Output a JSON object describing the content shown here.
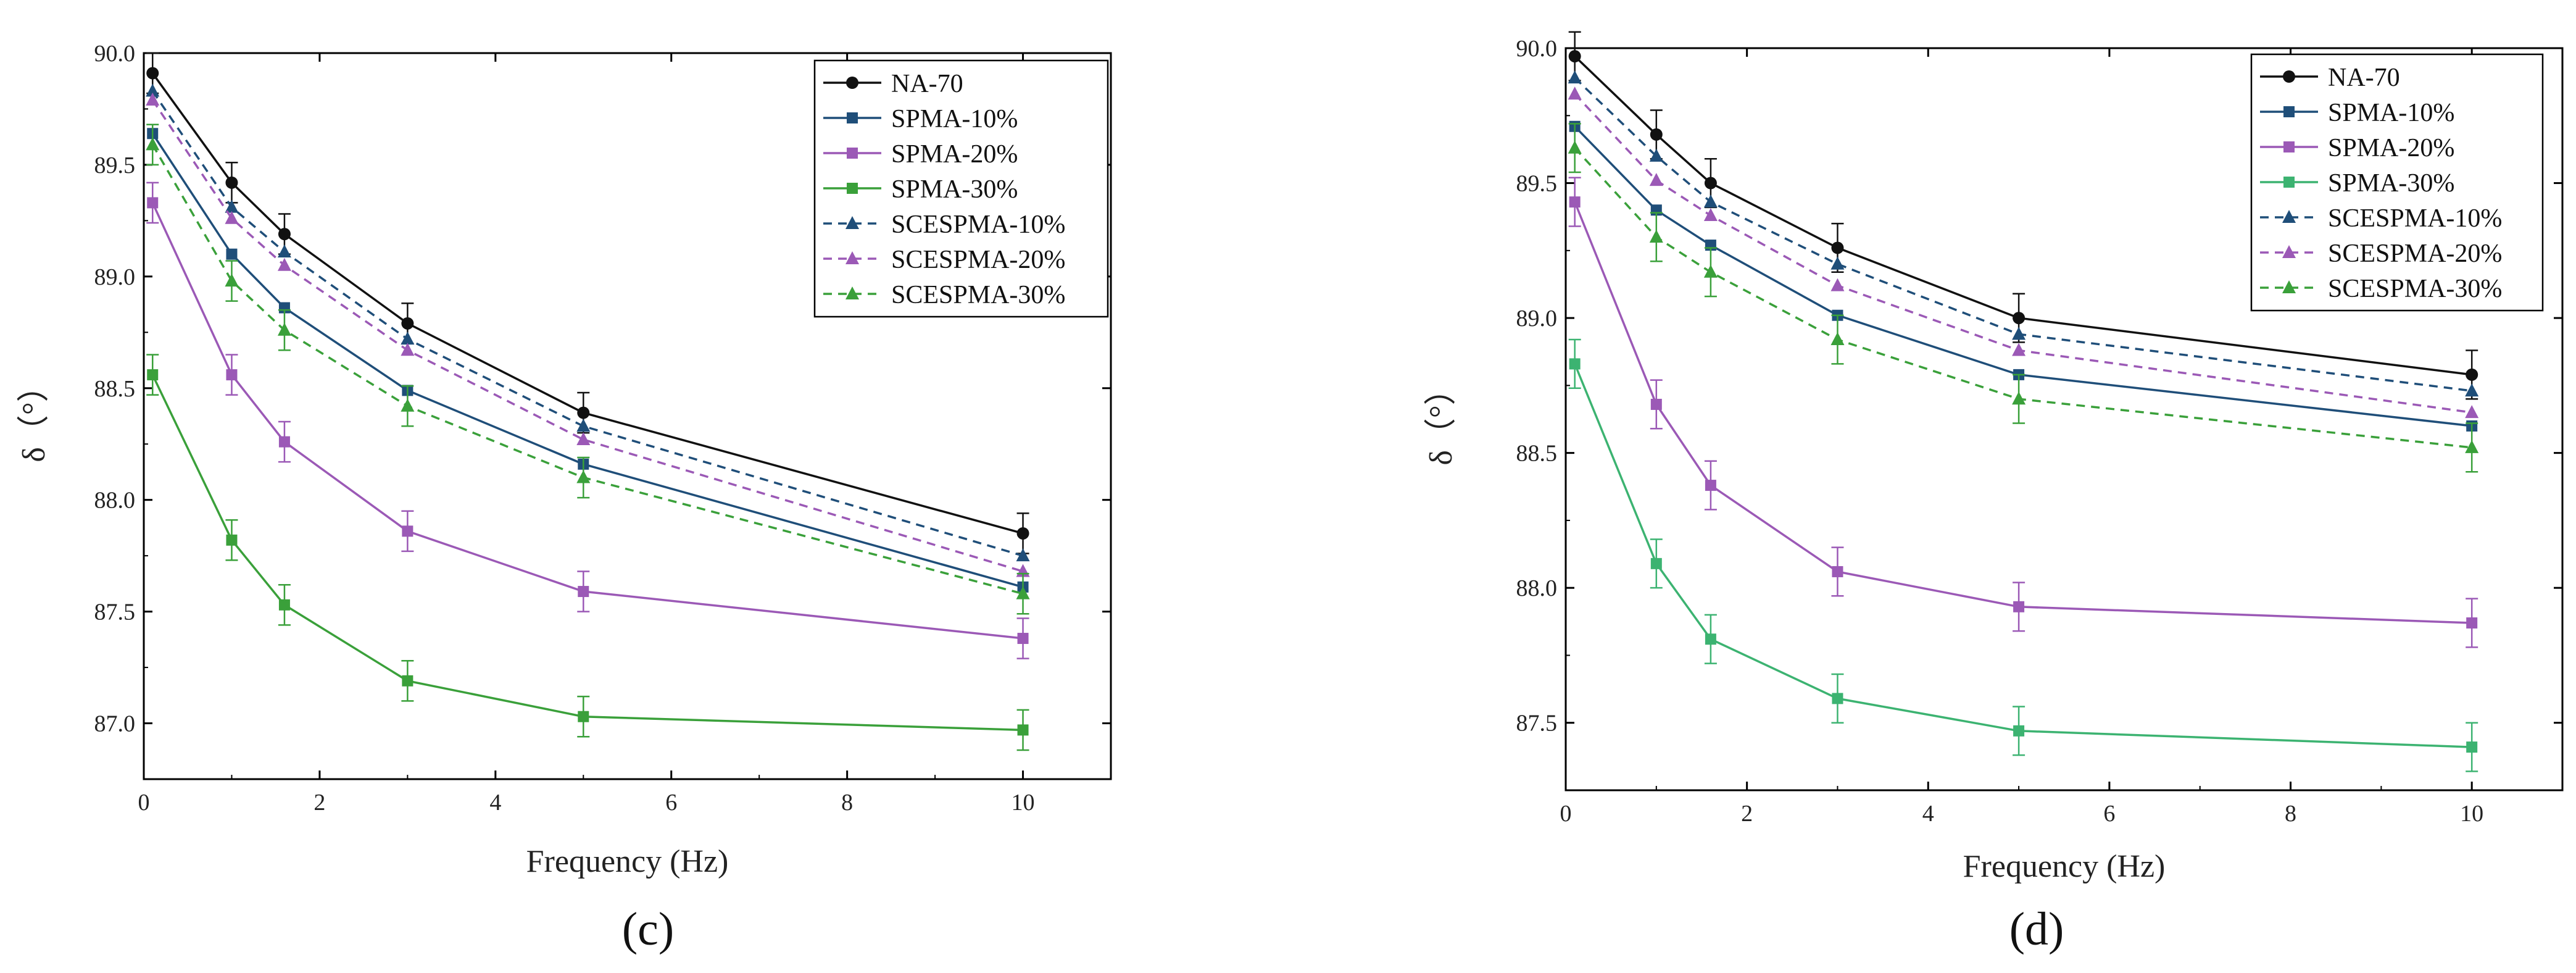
{
  "chart_data": [
    {
      "type": "line",
      "panel_label": "(c)",
      "xlabel": "Frequency (Hz)",
      "ylabel": "δ（°）",
      "xlim": [
        0,
        11
      ],
      "ylim": [
        86.75,
        90.0
      ],
      "xticks": [
        "0",
        "2",
        "4",
        "6",
        "8",
        "10"
      ],
      "yticks": [
        "87.0",
        "87.5",
        "88.0",
        "88.5",
        "89.0",
        "89.5",
        "90.0"
      ],
      "legend_position": "top-right",
      "x": [
        0.1,
        1,
        1.6,
        3,
        5,
        10
      ],
      "series": [
        {
          "name": "NA-70",
          "color": "#111111",
          "marker": "circle",
          "dash": "solid",
          "error_bar": true,
          "values": [
            89.91,
            89.42,
            89.19,
            88.79,
            88.39,
            87.85
          ]
        },
        {
          "name": "SPMA-10%",
          "color": "#1f4e79",
          "marker": "square",
          "dash": "solid",
          "error_bar": false,
          "values": [
            89.64,
            89.1,
            88.86,
            88.49,
            88.16,
            87.61
          ]
        },
        {
          "name": "SPMA-20%",
          "color": "#9b59b6",
          "marker": "square",
          "dash": "solid",
          "error_bar": true,
          "values": [
            89.33,
            88.56,
            88.26,
            87.86,
            87.59,
            87.38
          ]
        },
        {
          "name": "SPMA-30%",
          "color": "#3aa03a",
          "marker": "square",
          "dash": "solid",
          "error_bar": true,
          "values": [
            88.56,
            87.82,
            87.53,
            87.19,
            87.03,
            86.97
          ]
        },
        {
          "name": "SCESPMA-10%",
          "color": "#1f4e79",
          "marker": "triangle",
          "dash": "dashed",
          "error_bar": false,
          "values": [
            89.83,
            89.31,
            89.11,
            88.72,
            88.33,
            87.75
          ]
        },
        {
          "name": "SCESPMA-20%",
          "color": "#9b59b6",
          "marker": "triangle",
          "dash": "dashed",
          "error_bar": false,
          "values": [
            89.79,
            89.26,
            89.05,
            88.67,
            88.27,
            87.68
          ]
        },
        {
          "name": "SCESPMA-30%",
          "color": "#3aa03a",
          "marker": "triangle",
          "dash": "dashed",
          "error_bar": true,
          "values": [
            89.59,
            88.98,
            88.76,
            88.42,
            88.1,
            87.58
          ]
        }
      ]
    },
    {
      "type": "line",
      "panel_label": "(d)",
      "xlabel": "Frequency (Hz)",
      "ylabel": "δ（°）",
      "xlim": [
        0,
        11
      ],
      "ylim": [
        87.25,
        90.0
      ],
      "xticks": [
        "0",
        "2",
        "4",
        "6",
        "8",
        "10"
      ],
      "yticks": [
        "87.5",
        "88.0",
        "88.5",
        "89.0",
        "89.5",
        "90.0"
      ],
      "legend_position": "top-right",
      "x": [
        0.1,
        1,
        1.6,
        3,
        5,
        10
      ],
      "series": [
        {
          "name": "NA-70",
          "color": "#111111",
          "marker": "circle",
          "dash": "solid",
          "error_bar": true,
          "values": [
            89.97,
            89.68,
            89.5,
            89.26,
            89.0,
            88.79
          ]
        },
        {
          "name": "SPMA-10%",
          "color": "#1f4e79",
          "marker": "square",
          "dash": "solid",
          "error_bar": false,
          "values": [
            89.71,
            89.4,
            89.27,
            89.01,
            88.79,
            88.6
          ]
        },
        {
          "name": "SPMA-20%",
          "color": "#9b59b6",
          "marker": "square",
          "dash": "solid",
          "error_bar": true,
          "values": [
            89.43,
            88.68,
            88.38,
            88.06,
            87.93,
            87.87
          ]
        },
        {
          "name": "SPMA-30%",
          "color": "#3cb371",
          "marker": "square",
          "dash": "solid",
          "error_bar": true,
          "values": [
            88.83,
            88.09,
            87.81,
            87.59,
            87.47,
            87.41
          ]
        },
        {
          "name": "SCESPMA-10%",
          "color": "#1f4e79",
          "marker": "triangle",
          "dash": "dashed",
          "error_bar": false,
          "values": [
            89.89,
            89.6,
            89.43,
            89.2,
            88.94,
            88.73
          ]
        },
        {
          "name": "SCESPMA-20%",
          "color": "#9b59b6",
          "marker": "triangle",
          "dash": "dashed",
          "error_bar": false,
          "values": [
            89.83,
            89.51,
            89.38,
            89.12,
            88.88,
            88.65
          ]
        },
        {
          "name": "SCESPMA-30%",
          "color": "#3aa03a",
          "marker": "triangle",
          "dash": "dashed",
          "error_bar": true,
          "values": [
            89.63,
            89.3,
            89.17,
            88.92,
            88.7,
            88.52
          ]
        }
      ]
    }
  ]
}
